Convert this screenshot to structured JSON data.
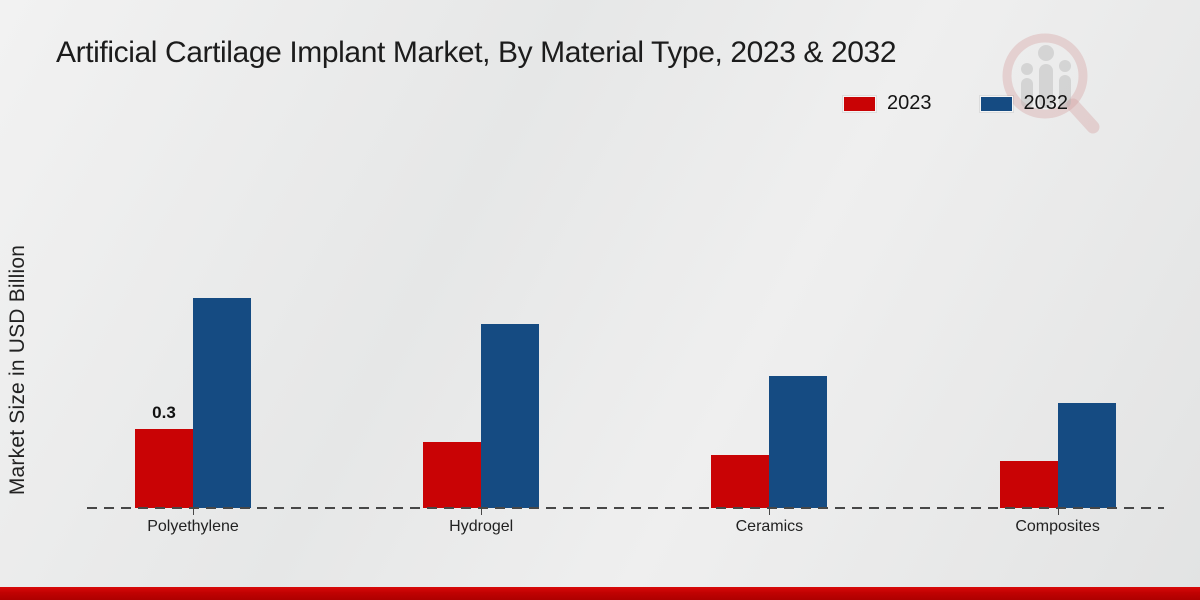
{
  "chart_data": {
    "type": "bar",
    "title": "Artificial Cartilage Implant Market, By Material Type, 2023 & 2032",
    "ylabel": "Market Size in USD Billion",
    "xlabel": "",
    "categories": [
      "Polyethylene",
      "Hydrogel",
      "Ceramics",
      "Composites"
    ],
    "series": [
      {
        "name": "2023",
        "color": "#c90305",
        "values": [
          0.3,
          0.25,
          0.2,
          0.18
        ],
        "labels": [
          "0.3",
          null,
          null,
          null
        ]
      },
      {
        "name": "2032",
        "color": "#154b82",
        "values": [
          0.8,
          0.7,
          0.5,
          0.4
        ],
        "labels": [
          null,
          null,
          null,
          null
        ]
      }
    ],
    "ylim": [
      0,
      1.0
    ],
    "grid": false,
    "axis_style": "dashed-baseline",
    "legend_position": "top-right",
    "units": "USD Billion"
  },
  "branding": {
    "watermark_icon": "magnifier-bar-chart-logo",
    "accent_red": "#c00202"
  }
}
